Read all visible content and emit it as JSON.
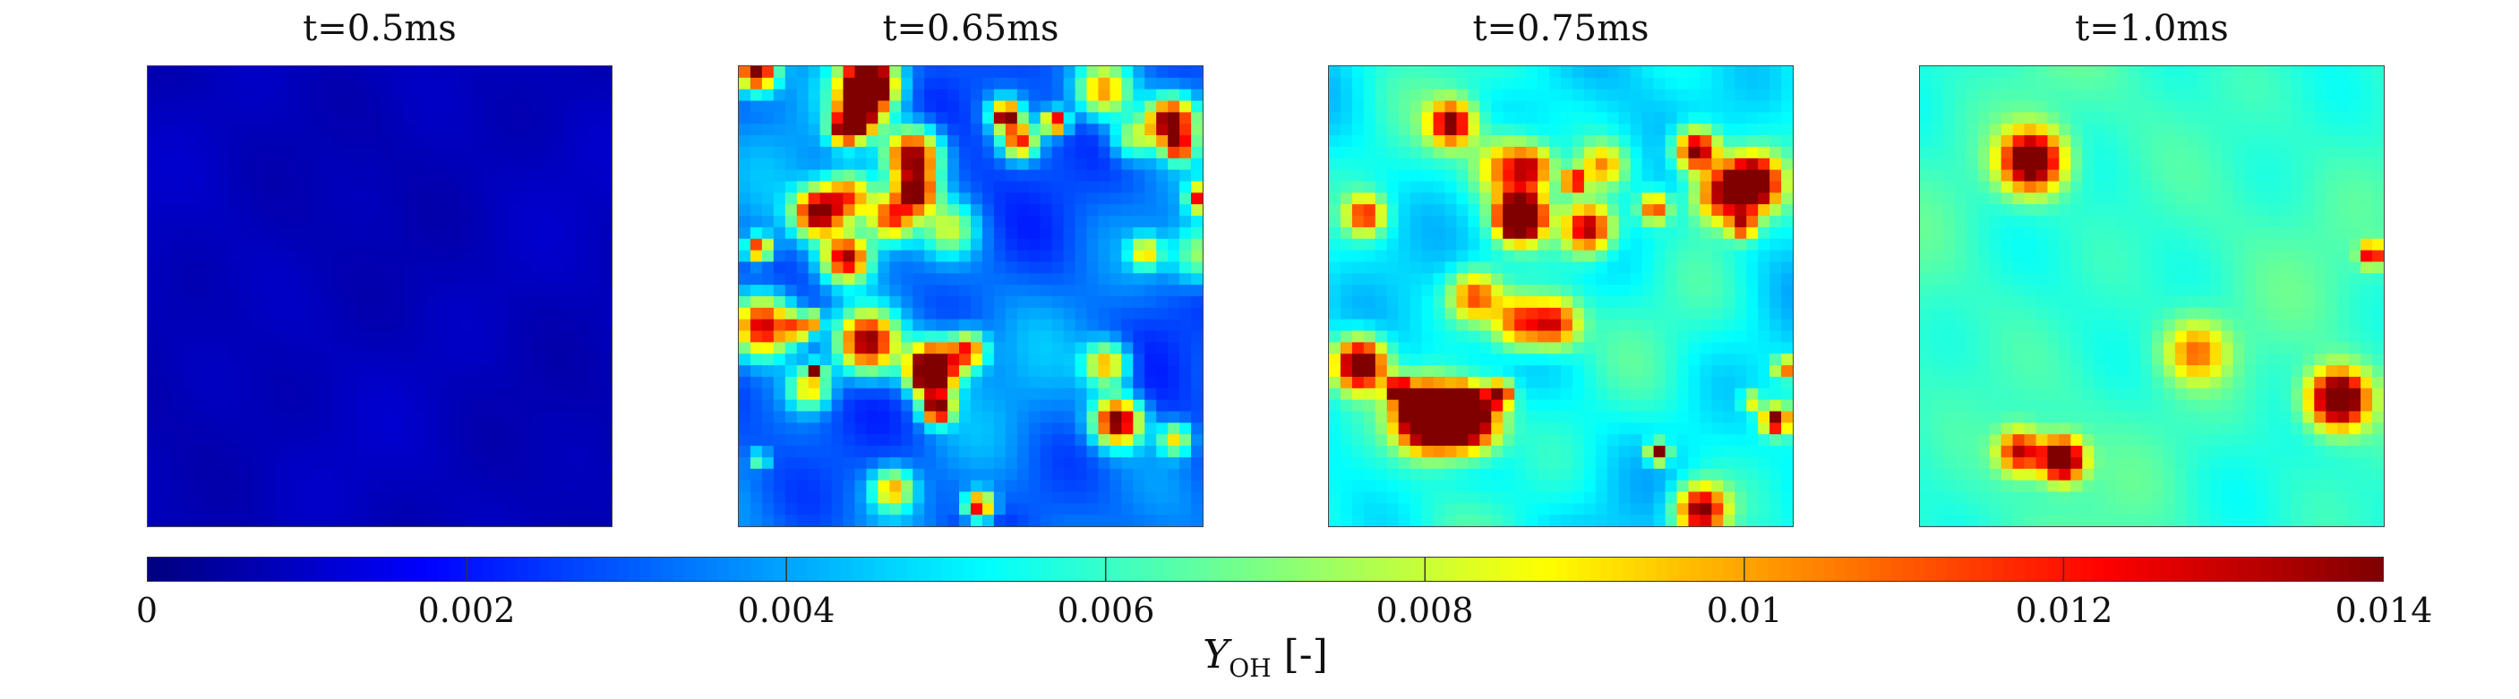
{
  "chart_data": {
    "type": "heatmap",
    "panels": [
      {
        "title": "t=0.5ms",
        "level": 0.0008,
        "spread": 0.0006,
        "hot_spots": 0
      },
      {
        "title": "t=0.65ms",
        "level": 0.0032,
        "spread": 0.003,
        "hot_spots": 40
      },
      {
        "title": "t=0.75ms",
        "level": 0.0052,
        "spread": 0.003,
        "hot_spots": 30
      },
      {
        "title": "t=1.0ms",
        "level": 0.006,
        "spread": 0.0016,
        "hot_spots": 6
      }
    ],
    "colorbar": {
      "colormap": "jet",
      "range": [
        0,
        0.014
      ],
      "ticks": [
        "0",
        "0.002",
        "0.004",
        "0.006",
        "0.008",
        "0.01",
        "0.012",
        "0.014"
      ],
      "label_main": "Y",
      "label_sub": "OH",
      "label_unit": "[-]"
    }
  }
}
